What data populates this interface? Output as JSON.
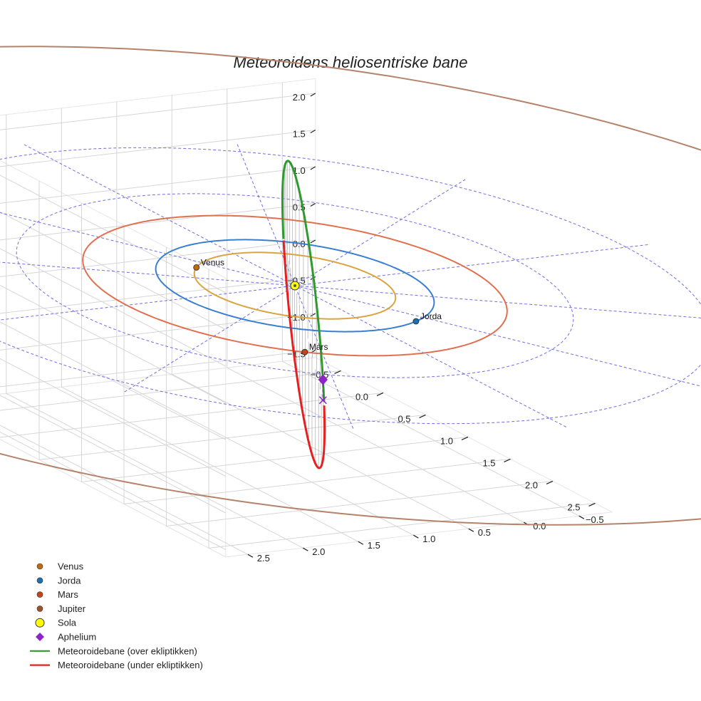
{
  "chart_data": {
    "type": "line",
    "projection": "3d",
    "title": "Meteoroidens heliosentriske bane",
    "axes": {
      "x": {
        "ticks": [
          "−0.5",
          "0.0",
          "0.5",
          "1.0",
          "1.5",
          "2.0",
          "2.5"
        ],
        "range": [
          -0.8,
          2.7
        ]
      },
      "y": {
        "ticks": [
          "−0.5",
          "0.0",
          "0.5",
          "1.0",
          "1.5",
          "2.0",
          "2.5"
        ],
        "range": [
          -0.8,
          2.7
        ]
      },
      "z": {
        "ticks": [
          "−1.5",
          "−1.0",
          "−0.5",
          "0.0",
          "0.5",
          "1.0",
          "1.5",
          "2.0"
        ],
        "range": [
          -1.6,
          2.2
        ]
      }
    },
    "grid": true,
    "legend_position": "bottom-left",
    "sun": {
      "name": "Sola",
      "x": 0,
      "y": 0,
      "z": 0,
      "color": "#ffff00"
    },
    "planet_orbits": [
      {
        "name": "Venus",
        "a": 0.723,
        "color": "#d9a441"
      },
      {
        "name": "Jorda",
        "a": 1.0,
        "color": "#3a7fd0"
      },
      {
        "name": "Mars",
        "a": 1.524,
        "color": "#e07050"
      },
      {
        "name": "Jupiter",
        "a": 5.2,
        "color": "#b5836a"
      }
    ],
    "planets": [
      {
        "name": "Venus",
        "x": -0.55,
        "y": 0.47,
        "z": 0,
        "color": "#c06a10"
      },
      {
        "name": "Jorda",
        "x": 0.92,
        "y": -0.39,
        "z": 0,
        "color": "#1f6fae"
      },
      {
        "name": "Mars",
        "x": 1.25,
        "y": 0.87,
        "z": 0,
        "color": "#c4441c"
      },
      {
        "name": "Jupiter",
        "color": "#a0522d"
      }
    ],
    "meteoroid_orbit": {
      "segments": [
        {
          "name": "Meteoroidebane (over ekliptikken)",
          "color": "#2e9a2e"
        },
        {
          "name": "Meteoroidebane (under ekliptikken)",
          "color": "#e52020"
        }
      ],
      "perihelion": {
        "x": 0.85,
        "y": -0.55,
        "z": 0.0
      },
      "aphelion": {
        "name": "Aphelium",
        "x": 2.18,
        "y": 1.42,
        "z": 0.28,
        "color": "#8e24c8"
      }
    },
    "ecliptic_reference": {
      "radii": [
        1.0,
        2.0,
        3.0
      ],
      "color": "#5555dd"
    },
    "legend": [
      {
        "label": "Venus",
        "marker": "dot",
        "color": "#c06a10"
      },
      {
        "label": "Jorda",
        "marker": "dot",
        "color": "#1f6fae"
      },
      {
        "label": "Mars",
        "marker": "dot",
        "color": "#c4441c"
      },
      {
        "label": "Jupiter",
        "marker": "dot",
        "color": "#a0522d"
      },
      {
        "label": "Sola",
        "marker": "sun",
        "color": "#ffff00"
      },
      {
        "label": "Aphelium",
        "marker": "diamond",
        "color": "#8e24c8"
      },
      {
        "label": "Meteoroidebane (over ekliptikken)",
        "marker": "line",
        "color": "#2e9a2e"
      },
      {
        "label": "Meteoroidebane (under ekliptikken)",
        "marker": "line",
        "color": "#e52020"
      }
    ]
  }
}
